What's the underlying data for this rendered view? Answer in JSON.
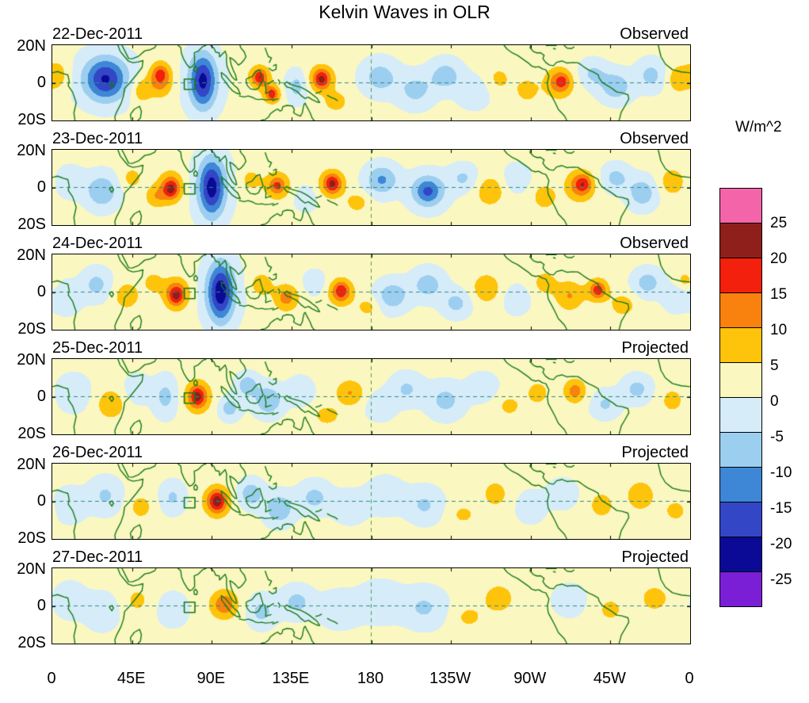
{
  "title": "Kelvin Waves in OLR",
  "colorbar": {
    "units_label": "W/m^2",
    "tick_labels": [
      "25",
      "20",
      "15",
      "10",
      "5",
      "0",
      "-5",
      "-10",
      "-15",
      "-20",
      "-25"
    ],
    "colors_top_to_bottom": [
      "#F464A8",
      "#8F1F1A",
      "#F2200C",
      "#F8820D",
      "#FEC40B",
      "#FBF7C0",
      "#D6ECF9",
      "#9CCEF0",
      "#3E86D6",
      "#3346C6",
      "#0A0A96",
      "#7B1FD6"
    ]
  },
  "x_axis": {
    "labels": [
      "0",
      "45E",
      "90E",
      "135E",
      "180",
      "135W",
      "90W",
      "45W",
      "0"
    ]
  },
  "y_axis": {
    "labels": [
      "20N",
      "0",
      "20S"
    ]
  },
  "map_colors": {
    "coastline": "#177A17",
    "equator_line": "#2E8B8B",
    "dateline_line": "#4F9E4F",
    "marker_box": "#177A17"
  },
  "chart_data": {
    "type": "heatmap",
    "title": "Kelvin Waves in OLR",
    "units": "W/m^2",
    "lon_range": [
      0,
      360
    ],
    "lat_range": [
      -20,
      20
    ],
    "contour_levels": [
      -25,
      -20,
      -15,
      -10,
      -5,
      0,
      5,
      10,
      15,
      20,
      25
    ],
    "background": 1.2,
    "marker_box": {
      "lon": [
        74.5,
        80.5
      ],
      "lat": [
        -3.5,
        2
      ]
    },
    "panels": [
      {
        "date": "22-Dec-2011",
        "status": "Observed",
        "anomalies": [
          [
            3,
            4,
            7,
            9,
            7
          ],
          [
            30,
            2,
            11,
            11,
            -17
          ],
          [
            30,
            2,
            20,
            14,
            -5
          ],
          [
            50,
            -4,
            6,
            7,
            8
          ],
          [
            61,
            2,
            7,
            9,
            13
          ],
          [
            61,
            5,
            4,
            4,
            6
          ],
          [
            85,
            1,
            7,
            14,
            -18
          ],
          [
            85,
            1,
            12,
            16,
            -5
          ],
          [
            117,
            3,
            6,
            6,
            13
          ],
          [
            117,
            3,
            3,
            3.5,
            6
          ],
          [
            124,
            -6,
            5,
            5,
            12
          ],
          [
            124,
            -6,
            2.5,
            3,
            6
          ],
          [
            138,
            -2,
            6,
            8,
            -8
          ],
          [
            152,
            2,
            7,
            7,
            14
          ],
          [
            152,
            2,
            3.5,
            4,
            7
          ],
          [
            160,
            -10,
            6,
            5,
            8
          ],
          [
            185,
            3,
            10,
            9,
            -9
          ],
          [
            205,
            -4,
            10,
            9,
            -8
          ],
          [
            222,
            4,
            9,
            8,
            -9
          ],
          [
            238,
            -5,
            9,
            8,
            -6
          ],
          [
            252,
            2,
            8,
            8,
            5
          ],
          [
            268,
            -4,
            7,
            7,
            6
          ],
          [
            286,
            0,
            8,
            8,
            12
          ],
          [
            288,
            1,
            4,
            4,
            6
          ],
          [
            305,
            5,
            8,
            7,
            -7
          ],
          [
            318,
            -2,
            9,
            8,
            -10
          ],
          [
            338,
            4,
            8,
            8,
            -8
          ],
          [
            353,
            2,
            6,
            7,
            8
          ]
        ]
      },
      {
        "date": "23-Dec-2011",
        "status": "Observed",
        "anomalies": [
          [
            10,
            3,
            8,
            8,
            -5
          ],
          [
            28,
            -2,
            9,
            9,
            -11
          ],
          [
            45,
            5,
            6,
            6,
            6
          ],
          [
            58,
            -5,
            6,
            6,
            7
          ],
          [
            67,
            0,
            7,
            8,
            14
          ],
          [
            67,
            -1,
            3.5,
            4,
            8
          ],
          [
            90,
            0,
            7,
            15,
            -19
          ],
          [
            90,
            0,
            12,
            17,
            -5
          ],
          [
            112,
            4,
            6,
            6,
            6
          ],
          [
            127,
            1,
            7,
            7,
            12
          ],
          [
            127,
            1,
            3,
            3,
            4
          ],
          [
            143,
            -6,
            6,
            6,
            -6
          ],
          [
            158,
            2,
            7,
            7,
            14
          ],
          [
            158,
            2,
            3.5,
            4,
            7
          ],
          [
            172,
            -8,
            6,
            5,
            7
          ],
          [
            186,
            4,
            9,
            8,
            -12
          ],
          [
            212,
            -2,
            10,
            9,
            -14
          ],
          [
            212,
            -2,
            5,
            5,
            -4
          ],
          [
            232,
            5,
            8,
            7,
            -7
          ],
          [
            247,
            -2,
            8,
            8,
            8
          ],
          [
            262,
            5,
            7,
            7,
            -6
          ],
          [
            278,
            -5,
            7,
            7,
            7
          ],
          [
            298,
            1,
            8,
            8,
            13
          ],
          [
            300,
            2,
            4,
            4,
            7
          ],
          [
            318,
            5,
            8,
            7,
            -8
          ],
          [
            333,
            -3,
            8,
            8,
            -10
          ],
          [
            350,
            3,
            7,
            7,
            8
          ]
        ]
      },
      {
        "date": "24-Dec-2011",
        "status": "Observed",
        "anomalies": [
          [
            8,
            -3,
            8,
            8,
            -6
          ],
          [
            25,
            4,
            8,
            8,
            -8
          ],
          [
            42,
            -2,
            7,
            7,
            8
          ],
          [
            57,
            5,
            6,
            6,
            6
          ],
          [
            70,
            -1,
            7,
            8,
            15
          ],
          [
            70,
            -2,
            3.5,
            4,
            7
          ],
          [
            95,
            0,
            7,
            15,
            -20
          ],
          [
            95,
            0,
            12,
            17,
            -5
          ],
          [
            118,
            4,
            6,
            6,
            8
          ],
          [
            132,
            -3,
            7,
            7,
            11
          ],
          [
            148,
            5,
            6,
            6,
            -6
          ],
          [
            163,
            0,
            7,
            7,
            13
          ],
          [
            163,
            1,
            3.5,
            4,
            6
          ],
          [
            178,
            -8,
            6,
            5,
            6
          ],
          [
            192,
            -2,
            9,
            8,
            -10
          ],
          [
            212,
            4,
            9,
            8,
            -9
          ],
          [
            228,
            -6,
            8,
            7,
            -8
          ],
          [
            245,
            2,
            8,
            8,
            8
          ],
          [
            262,
            -4,
            7,
            7,
            -6
          ],
          [
            278,
            5,
            7,
            7,
            6
          ],
          [
            292,
            -2,
            8,
            8,
            9
          ],
          [
            308,
            1,
            6,
            6,
            13
          ],
          [
            308,
            1,
            3,
            3,
            5
          ],
          [
            322,
            -7,
            7,
            6,
            7
          ],
          [
            336,
            5,
            8,
            7,
            -9
          ],
          [
            352,
            -3,
            7,
            7,
            -6
          ],
          [
            357,
            6,
            5,
            5,
            6
          ]
        ]
      },
      {
        "date": "25-Dec-2011",
        "status": "Projected",
        "anomalies": [
          [
            12,
            2,
            9,
            9,
            -6
          ],
          [
            33,
            -4,
            8,
            8,
            8
          ],
          [
            48,
            4,
            7,
            7,
            -6
          ],
          [
            64,
            0,
            7,
            10,
            -8
          ],
          [
            82,
            0,
            6,
            7,
            13
          ],
          [
            82,
            0,
            3,
            4,
            5
          ],
          [
            82,
            0,
            10,
            10,
            4
          ],
          [
            100,
            -6,
            6,
            6,
            -9
          ],
          [
            110,
            6,
            6,
            6,
            -10
          ],
          [
            122,
            -2,
            8,
            8,
            -11
          ],
          [
            140,
            3,
            7,
            7,
            -6
          ],
          [
            155,
            -10,
            7,
            5,
            7
          ],
          [
            168,
            2,
            8,
            7,
            9
          ],
          [
            185,
            -5,
            8,
            7,
            -6
          ],
          [
            200,
            4,
            9,
            8,
            -7
          ],
          [
            222,
            -2,
            10,
            9,
            -8
          ],
          [
            243,
            5,
            8,
            7,
            -6
          ],
          [
            258,
            -5,
            8,
            7,
            5
          ],
          [
            274,
            2,
            7,
            7,
            6
          ],
          [
            295,
            3,
            7,
            7,
            9
          ],
          [
            295,
            3,
            3,
            3,
            4
          ],
          [
            312,
            -4,
            8,
            7,
            -7
          ],
          [
            330,
            4,
            8,
            7,
            -8
          ],
          [
            350,
            -2,
            7,
            7,
            6
          ]
        ]
      },
      {
        "date": "26-Dec-2011",
        "status": "Projected",
        "anomalies": [
          [
            10,
            -2,
            9,
            9,
            -5
          ],
          [
            30,
            3,
            9,
            9,
            -7
          ],
          [
            50,
            -3,
            7,
            7,
            6
          ],
          [
            68,
            2,
            7,
            8,
            -7
          ],
          [
            93,
            0,
            6,
            7,
            15
          ],
          [
            93,
            0,
            3,
            3.5,
            4
          ],
          [
            93,
            0,
            10,
            9,
            4
          ],
          [
            112,
            4,
            7,
            7,
            -10
          ],
          [
            128,
            -4,
            8,
            8,
            -11
          ],
          [
            148,
            2,
            9,
            8,
            -8
          ],
          [
            168,
            -3,
            9,
            8,
            -6
          ],
          [
            188,
            3,
            10,
            9,
            -6
          ],
          [
            210,
            -2,
            10,
            9,
            -7
          ],
          [
            232,
            -7,
            8,
            6,
            5
          ],
          [
            250,
            4,
            8,
            8,
            6
          ],
          [
            270,
            -3,
            8,
            8,
            -5
          ],
          [
            288,
            4,
            8,
            7,
            -6
          ],
          [
            310,
            -2,
            8,
            8,
            6
          ],
          [
            332,
            3,
            8,
            8,
            8
          ],
          [
            352,
            -5,
            7,
            6,
            6
          ]
        ]
      },
      {
        "date": "27-Dec-2011",
        "status": "Projected",
        "anomalies": [
          [
            10,
            3,
            9,
            9,
            -5
          ],
          [
            28,
            -3,
            9,
            9,
            -6
          ],
          [
            48,
            3,
            8,
            8,
            5
          ],
          [
            68,
            -2,
            8,
            8,
            -6
          ],
          [
            97,
            1,
            7,
            7,
            10
          ],
          [
            97,
            0,
            11,
            9,
            3
          ],
          [
            118,
            -3,
            8,
            8,
            -8
          ],
          [
            138,
            2,
            9,
            8,
            -8
          ],
          [
            162,
            -2,
            11,
            9,
            -6
          ],
          [
            185,
            2,
            12,
            10,
            -6
          ],
          [
            210,
            -1,
            12,
            10,
            -7
          ],
          [
            235,
            -6,
            9,
            7,
            5
          ],
          [
            252,
            4,
            9,
            8,
            7
          ],
          [
            292,
            3,
            9,
            8,
            -5
          ],
          [
            315,
            -2,
            9,
            8,
            5
          ],
          [
            340,
            4,
            9,
            8,
            6
          ]
        ]
      }
    ]
  }
}
